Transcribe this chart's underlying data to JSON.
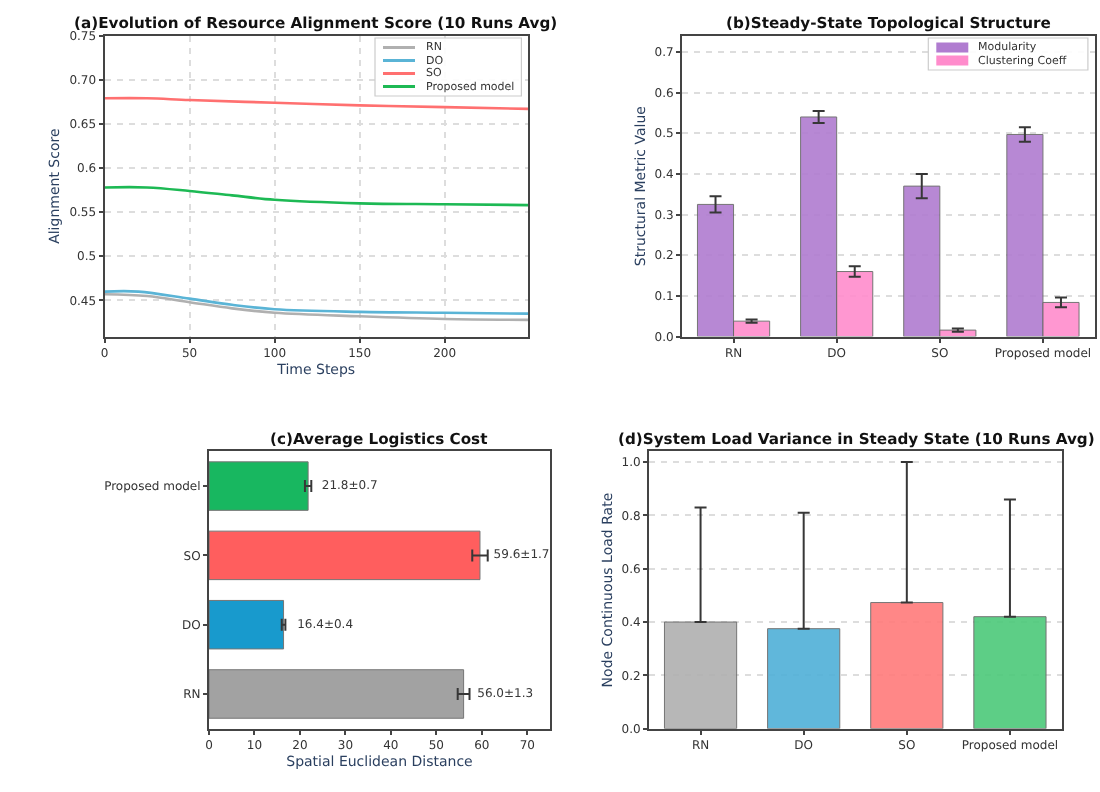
{
  "chart_data": [
    {
      "type": "line",
      "title": "(a)Evolution of Resource Alignment Score (10 Runs Avg)",
      "xlabel": "Time Steps",
      "ylabel": "Alignment Score",
      "xlim": [
        0,
        249
      ],
      "xticks": [
        0,
        50,
        100,
        150,
        200
      ],
      "ylim": [
        0.409,
        0.75
      ],
      "yticks": [
        0.45,
        0.5,
        0.55,
        0.6,
        0.65,
        {
          "value": 0.7,
          "label": "0.70"
        },
        0.75
      ],
      "grid": true,
      "legend": "top right",
      "marker": "none",
      "series": [
        {
          "name": "RN",
          "color": "#b0b0b0",
          "x": [
            0,
            25,
            50,
            75,
            100,
            150,
            200,
            249
          ],
          "values": [
            0.457,
            0.455,
            0.448,
            0.441,
            0.436,
            0.432,
            0.429,
            0.428
          ]
        },
        {
          "name": "DO",
          "color": "#5ab4d6",
          "x": [
            0,
            20,
            50,
            75,
            100,
            150,
            200,
            249
          ],
          "values": [
            0.46,
            0.46,
            0.452,
            0.445,
            0.44,
            0.437,
            0.436,
            0.435
          ]
        },
        {
          "name": "SO",
          "color": "#ff7070",
          "x": [
            0,
            25,
            50,
            100,
            150,
            200,
            249
          ],
          "values": [
            0.679,
            0.679,
            0.677,
            0.674,
            0.671,
            0.669,
            0.667
          ]
        },
        {
          "name": "Proposed model",
          "color": "#1db954",
          "x": [
            0,
            25,
            50,
            75,
            100,
            150,
            200,
            249
          ],
          "values": [
            0.578,
            0.578,
            0.574,
            0.569,
            0.564,
            0.56,
            0.559,
            0.558
          ]
        }
      ]
    },
    {
      "type": "bar",
      "title": "(b)Steady-State Topological Structure",
      "ylabel": "Structural Metric Value",
      "categories": [
        "RN",
        "DO",
        "SO",
        "Proposed model"
      ],
      "ylim": [
        0,
        0.74
      ],
      "yticks": [
        {
          "value": 0,
          "label": "0.0"
        },
        0.1,
        0.2,
        0.3,
        0.4,
        0.5,
        0.6,
        0.7
      ],
      "grid": "y",
      "legend": "top right",
      "series": [
        {
          "name": "Modularity",
          "color": "#b07cd0",
          "values": [
            0.325,
            0.54,
            0.37,
            0.497
          ],
          "errors": [
            0.02,
            0.015,
            0.03,
            0.018
          ]
        },
        {
          "name": "Clustering Coeff",
          "color": "#ff8ccc",
          "values": [
            0.038,
            0.16,
            0.016,
            0.084
          ],
          "errors": [
            0.004,
            0.013,
            0.004,
            0.012
          ]
        }
      ]
    },
    {
      "type": "bar",
      "orientation": "horizontal",
      "title": "(c)Average Logistics Cost",
      "xlabel": "Spatial Euclidean Distance",
      "categories": [
        "Proposed model",
        "SO",
        "DO",
        "RN"
      ],
      "xlim": [
        0,
        75
      ],
      "xticks": [
        0,
        10,
        20,
        30,
        40,
        50,
        60,
        70
      ],
      "grid": false,
      "values": [
        21.8,
        59.6,
        16.4,
        56.0
      ],
      "errors": [
        0.7,
        1.7,
        0.4,
        1.3
      ],
      "value_labels": [
        "21.8±0.7",
        "59.6±1.7",
        "16.4±0.4",
        "56.0±1.3"
      ],
      "colors": [
        "#00b04f",
        "#ff4d4d",
        "#0090c8",
        "#999999"
      ]
    },
    {
      "type": "bar",
      "title": "(d)System Load Variance in Steady State (10 Runs Avg)",
      "ylabel": "Node Continuous Load Rate",
      "categories": [
        "RN",
        "DO",
        "SO",
        "Proposed model"
      ],
      "ylim": [
        0,
        1.04
      ],
      "yticks": [
        {
          "value": 0,
          "label": "0.0"
        },
        {
          "value": 0.2,
          "label": "0.2"
        },
        {
          "value": 0.4,
          "label": "0.4"
        },
        {
          "value": 0.6,
          "label": "0.6"
        },
        {
          "value": 0.8,
          "label": "0.8"
        },
        {
          "value": 1,
          "label": "1.0"
        }
      ],
      "grid": "y",
      "values": [
        0.4,
        0.375,
        0.473,
        0.42
      ],
      "errors": [
        [
          0.4,
          0.83
        ],
        [
          0.375,
          0.81
        ],
        [
          0.473,
          1.0
        ],
        [
          0.42,
          0.86
        ]
      ],
      "colors": [
        "#b0b0b0",
        "#4fb0d8",
        "#ff7b7b",
        "#4cc979"
      ]
    }
  ]
}
